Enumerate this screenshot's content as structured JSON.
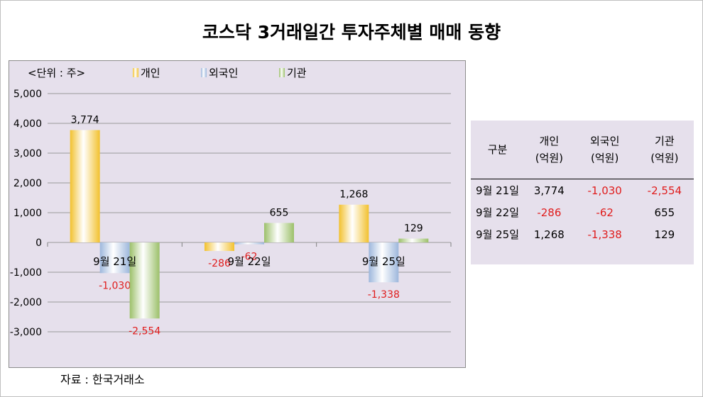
{
  "title": "코스닥 3거래일간 투자주체별 매매 동향",
  "unit_label": "<단위 : 주>",
  "source": "자료 : 한국거래소",
  "colors": {
    "individual": "#f2c12e",
    "foreign": "#9db7dc",
    "institution": "#9cc06a",
    "negative_text": "#e01c1c"
  },
  "chart_data": {
    "type": "bar",
    "categories": [
      "9월 21일",
      "9월 22일",
      "9월 25일"
    ],
    "series": [
      {
        "name": "개인",
        "values": [
          3774,
          -286,
          1268
        ]
      },
      {
        "name": "외국인",
        "values": [
          -1030,
          -62,
          -1338
        ]
      },
      {
        "name": "기관",
        "values": [
          -2554,
          655,
          129
        ]
      }
    ],
    "data_labels": [
      [
        "3,774",
        "-286",
        "1,268"
      ],
      [
        "-1,030",
        "-62",
        "-1,338"
      ],
      [
        "-2,554",
        "655",
        "129"
      ]
    ],
    "yticks": [
      "5,000",
      "4,000",
      "3,000",
      "2,000",
      "1,000",
      "0",
      "-1,000",
      "-2,000",
      "-3,000"
    ],
    "ytick_values": [
      5000,
      4000,
      3000,
      2000,
      1000,
      0,
      -1000,
      -2000,
      -3000
    ],
    "ylim": [
      -3000,
      5000
    ],
    "grid": true,
    "legend": "top"
  },
  "table": {
    "headers": [
      {
        "line1": "구분",
        "line2": ""
      },
      {
        "line1": "개인",
        "line2": "(억원)"
      },
      {
        "line1": "외국인",
        "line2": "(억원)"
      },
      {
        "line1": "기관",
        "line2": "(억원)"
      }
    ],
    "rows": [
      {
        "date": "9월 21일",
        "individual": "3,774",
        "foreign": "-1,030",
        "institution": "-2,554"
      },
      {
        "date": "9월 22일",
        "individual": "-286",
        "foreign": "-62",
        "institution": "655"
      },
      {
        "date": "9월 25일",
        "individual": "1,268",
        "foreign": "-1,338",
        "institution": "129"
      }
    ]
  }
}
